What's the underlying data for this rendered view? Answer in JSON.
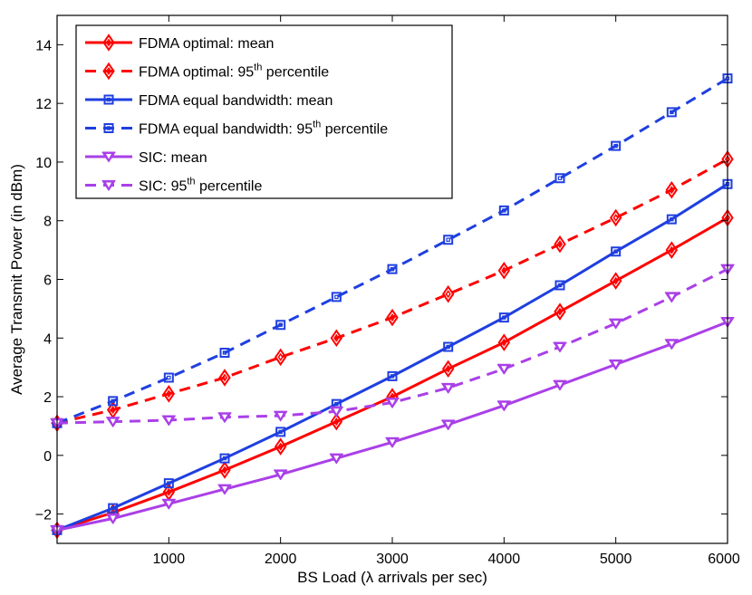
{
  "chart_data": {
    "type": "line",
    "title": "",
    "xlabel": "BS Load (λ arrivals per sec)",
    "ylabel": "Average Transmit Power (in dBm)",
    "xlim": [
      0,
      6000
    ],
    "ylim": [
      -3,
      15
    ],
    "xticks": [
      1000,
      2000,
      3000,
      4000,
      5000,
      6000
    ],
    "yticks": [
      -2,
      0,
      2,
      4,
      6,
      8,
      10,
      12,
      14
    ],
    "grid": false,
    "legend_position": "top-left",
    "x": [
      0,
      500,
      1000,
      1500,
      2000,
      2500,
      3000,
      3500,
      4000,
      4500,
      5000,
      5500,
      6000
    ],
    "series": [
      {
        "name": "FDMA optimal: mean",
        "legend_base": "FDMA optimal: mean",
        "legend_sup": "",
        "legend_tail": "",
        "color": "#ff0000",
        "dash": "solid",
        "marker": "diamond",
        "values": [
          -2.55,
          -1.95,
          -1.25,
          -0.5,
          0.3,
          1.15,
          2.0,
          2.95,
          3.85,
          4.9,
          5.95,
          7.0,
          8.1
        ]
      },
      {
        "name": "FDMA optimal: 95th percentile",
        "legend_base": "FDMA optimal: 95",
        "legend_sup": "th",
        "legend_tail": " percentile",
        "color": "#ff0000",
        "dash": "dashed",
        "marker": "diamond",
        "values": [
          1.1,
          1.55,
          2.1,
          2.65,
          3.35,
          4.0,
          4.7,
          5.5,
          6.3,
          7.2,
          8.1,
          9.05,
          10.1
        ]
      },
      {
        "name": "FDMA equal bandwidth: mean",
        "legend_base": "FDMA equal bandwidth: mean",
        "legend_sup": "",
        "legend_tail": "",
        "color": "#1f3fe0",
        "dash": "solid",
        "marker": "square",
        "values": [
          -2.55,
          -1.8,
          -0.95,
          -0.1,
          0.8,
          1.75,
          2.7,
          3.7,
          4.7,
          5.8,
          6.95,
          8.05,
          9.25
        ]
      },
      {
        "name": "FDMA equal bandwidth: 95th percentile",
        "legend_base": "FDMA equal bandwidth: 95",
        "legend_sup": "th",
        "legend_tail": " percentile",
        "color": "#1f3fe0",
        "dash": "dashed",
        "marker": "square",
        "values": [
          1.1,
          1.85,
          2.65,
          3.5,
          4.45,
          5.4,
          6.35,
          7.35,
          8.35,
          9.45,
          10.55,
          11.7,
          12.85
        ]
      },
      {
        "name": "SIC: mean",
        "legend_base": "SIC: mean",
        "legend_sup": "",
        "legend_tail": "",
        "color": "#aa40e8",
        "dash": "solid",
        "marker": "triangle-down",
        "values": [
          -2.55,
          -2.15,
          -1.65,
          -1.15,
          -0.65,
          -0.1,
          0.45,
          1.05,
          1.7,
          2.4,
          3.1,
          3.8,
          4.55
        ]
      },
      {
        "name": "SIC: 95th percentile",
        "legend_base": "SIC: 95",
        "legend_sup": "th",
        "legend_tail": " percentile",
        "color": "#aa40e8",
        "dash": "dashed",
        "marker": "triangle-down",
        "values": [
          1.1,
          1.15,
          1.2,
          1.3,
          1.35,
          1.5,
          1.8,
          2.3,
          2.95,
          3.7,
          4.5,
          5.4,
          6.35
        ]
      }
    ]
  }
}
